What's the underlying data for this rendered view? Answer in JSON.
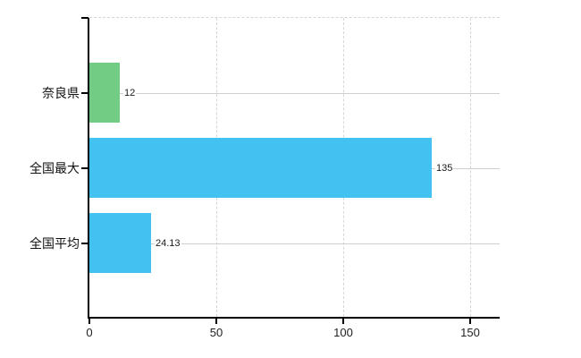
{
  "chart_data": {
    "type": "bar",
    "orientation": "horizontal",
    "title": "",
    "categories": [
      "奈良県",
      "全国最大",
      "全国平均"
    ],
    "values": [
      12,
      135,
      24.13
    ],
    "value_labels": [
      "12",
      "135",
      "24.13"
    ],
    "bar_colors": [
      "#72cc83",
      "#42c2f0",
      "#42c2f0"
    ],
    "x_ticks": [
      0,
      50,
      100,
      150
    ],
    "x_tick_labels": [
      "0",
      "50",
      "100",
      "150"
    ],
    "xlim": [
      0,
      161.6
    ],
    "grid": true,
    "legend": false,
    "colors": {
      "background": "#ffffff",
      "axis": "#000000",
      "horizontal_gridline": "#ccd1ca",
      "vertical_gridline": "#d6d6d6",
      "text": "#1a1a1a"
    }
  }
}
